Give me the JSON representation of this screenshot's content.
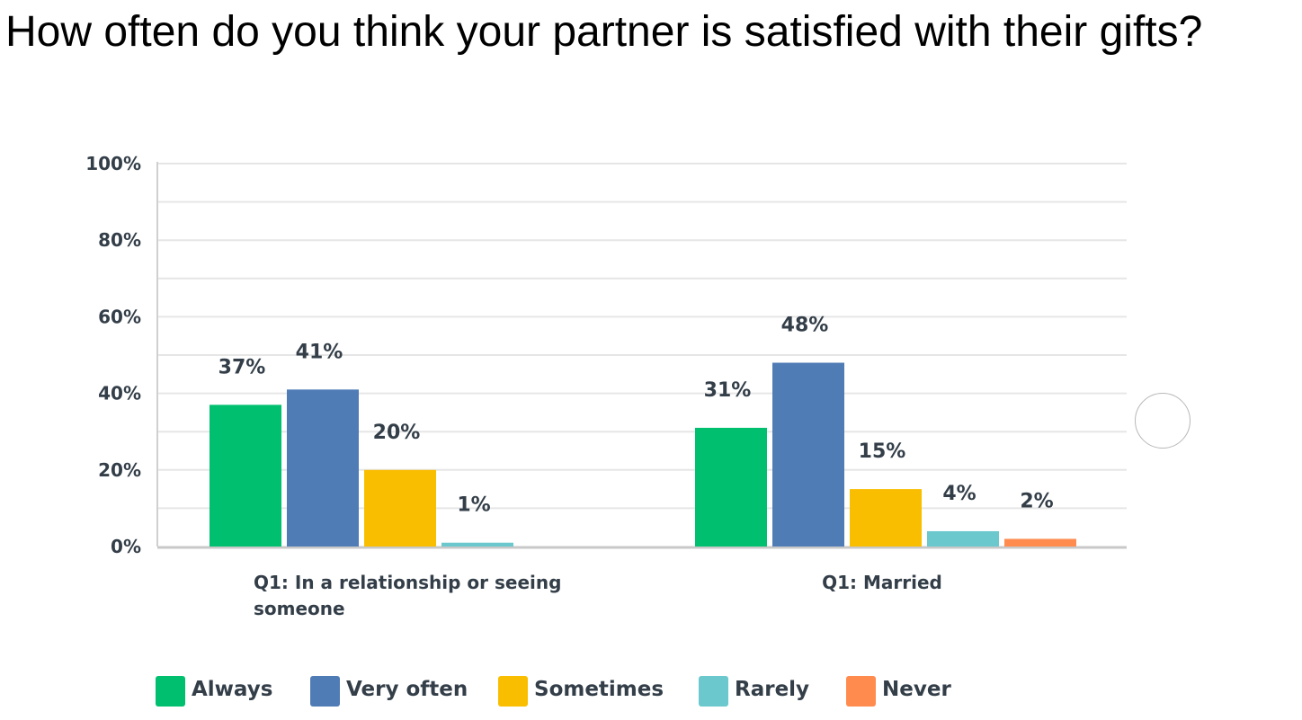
{
  "title": "How often do you think your partner is satisfied with their gifts?",
  "chart_data": {
    "type": "bar",
    "categories": [
      "Q1: In a relationship or seeing someone",
      "Q1: Married"
    ],
    "category_label_lines": [
      [
        "Q1: In a relationship or seeing",
        "someone"
      ],
      [
        "Q1: Married"
      ]
    ],
    "series": [
      {
        "name": "Always",
        "color": "#00bf6f",
        "values": [
          37,
          31
        ],
        "labels": [
          "37%",
          "31%"
        ]
      },
      {
        "name": "Very often",
        "color": "#507cb6",
        "values": [
          41,
          48
        ],
        "labels": [
          "41%",
          "48%"
        ]
      },
      {
        "name": "Sometimes",
        "color": "#f9be00",
        "values": [
          20,
          15
        ],
        "labels": [
          "20%",
          "15%"
        ]
      },
      {
        "name": "Rarely",
        "color": "#6bc8cd",
        "values": [
          1,
          4
        ],
        "labels": [
          "1%",
          "4%"
        ]
      },
      {
        "name": "Never",
        "color": "#ff8b4f",
        "values": [
          null,
          2
        ],
        "labels": [
          null,
          "2%"
        ]
      }
    ],
    "ylim": [
      0,
      100
    ],
    "yticks": [
      0,
      20,
      40,
      60,
      80,
      100
    ],
    "ytick_labels": [
      "0%",
      "20%",
      "40%",
      "60%",
      "80%",
      "100%"
    ],
    "grid": true,
    "legend_position": "bottom",
    "xlabel": "",
    "ylabel": ""
  },
  "nav_circle_icon": "circle-button-icon"
}
